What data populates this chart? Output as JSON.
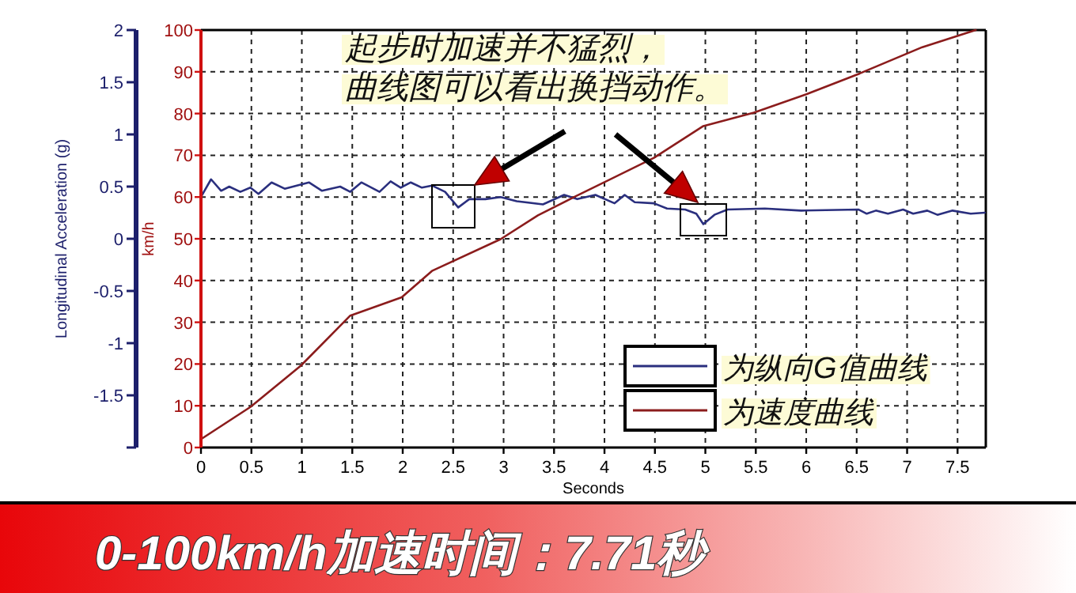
{
  "chart_data": {
    "type": "line",
    "title": "0-100km/h加速时间：7.71秒",
    "xlabel": "Seconds",
    "ylabel": "Longitudinal Acceleration (g)",
    "y2label": "km/h",
    "annotations": [
      "起步时加速并不猛烈，",
      "曲线图可以看出换挡动作。"
    ],
    "xlim": [
      0,
      7.78
    ],
    "xticks": [
      0,
      0.5,
      1,
      1.5,
      2,
      2.5,
      3,
      3.5,
      4,
      4.5,
      5,
      5.5,
      6,
      6.5,
      7,
      7.5
    ],
    "ylim": [
      -2,
      2
    ],
    "yticks": [
      {
        "value": -2,
        "label": null
      },
      -1.5,
      -1,
      -0.5,
      0,
      0.5,
      1,
      1.5,
      2
    ],
    "y2lim": [
      0,
      100
    ],
    "y2ticks": [
      0,
      10,
      20,
      30,
      40,
      50,
      60,
      70,
      80,
      90,
      100
    ],
    "grid": true,
    "legend": "bottom right",
    "marker": "none",
    "line_style": "solid",
    "series": [
      {
        "name": "为纵向G值曲线",
        "color": "#2a2f7e",
        "x": [
          0,
          0.1,
          0.2,
          0.28,
          0.39,
          0.49,
          0.57,
          0.7,
          0.83,
          1.07,
          1.2,
          1.38,
          1.48,
          1.59,
          1.77,
          1.88,
          1.98,
          2.08,
          2.19,
          2.29,
          2.42,
          2.55,
          2.66,
          2.82,
          2.97,
          3.13,
          3.39,
          3.6,
          3.73,
          3.91,
          4.1,
          4.2,
          4.3,
          4.49,
          4.62,
          4.8,
          4.91,
          4.98,
          5.09,
          5.22,
          5.59,
          5.95,
          6.52,
          6.6,
          6.69,
          6.81,
          6.96,
          7.06,
          7.2,
          7.3,
          7.45,
          7.63,
          7.77
        ],
        "values": [
          0.4,
          0.57,
          0.46,
          0.5,
          0.45,
          0.49,
          0.43,
          0.54,
          0.48,
          0.54,
          0.46,
          0.5,
          0.45,
          0.54,
          0.45,
          0.55,
          0.49,
          0.54,
          0.49,
          0.51,
          0.45,
          0.3,
          0.38,
          0.38,
          0.4,
          0.36,
          0.33,
          0.42,
          0.38,
          0.42,
          0.34,
          0.42,
          0.35,
          0.34,
          0.29,
          0.28,
          0.24,
          0.14,
          0.23,
          0.28,
          0.29,
          0.27,
          0.28,
          0.24,
          0.27,
          0.24,
          0.28,
          0.24,
          0.27,
          0.23,
          0.27,
          0.24,
          0.25
        ]
      },
      {
        "name": "为速度曲线",
        "color": "#8b1c1c",
        "axis": "y2",
        "x": [
          0,
          0.49,
          0.99,
          1.48,
          1.99,
          2.29,
          2.97,
          3.34,
          3.7,
          4.49,
          4.98,
          5.48,
          6.0,
          6.53,
          7.15,
          7.68
        ],
        "values": [
          2,
          9.7,
          19.6,
          31.6,
          36,
          42.3,
          49.9,
          55.6,
          60,
          69.4,
          77,
          80.2,
          84.6,
          89.6,
          95.9,
          100
        ]
      }
    ]
  }
}
